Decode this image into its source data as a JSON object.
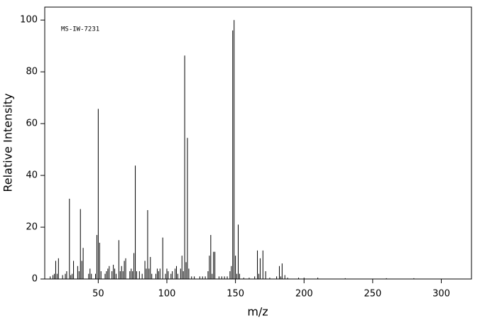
{
  "chart_data": {
    "type": "stem",
    "annotation": "MS-IW-7231",
    "x_label": "m/z",
    "y_label": "Relative Intensity",
    "color": "#000000",
    "xlim": [
      11,
      322
    ],
    "ylim": [
      0,
      105
    ],
    "xticks": [
      50,
      100,
      150,
      200,
      250,
      300
    ],
    "yticks": [
      0,
      20,
      40,
      60,
      80,
      100
    ],
    "x": [
      15,
      17,
      18,
      19,
      20,
      21,
      24,
      26,
      27,
      29,
      30,
      31,
      32,
      35,
      36,
      37,
      38,
      39,
      43,
      44,
      45,
      48,
      49,
      50,
      51,
      52,
      55,
      56,
      57,
      58,
      60,
      61,
      62,
      63,
      65,
      66,
      67,
      68,
      69,
      70,
      73,
      74,
      75,
      76,
      77,
      78,
      80,
      82,
      84,
      85,
      86,
      87,
      88,
      89,
      92,
      93,
      94,
      95,
      97,
      99,
      100,
      101,
      103,
      104,
      106,
      107,
      108,
      110,
      111,
      112,
      113,
      114,
      115,
      116,
      118,
      120,
      124,
      126,
      128,
      130,
      131,
      132,
      133,
      134,
      135,
      138,
      140,
      142,
      144,
      146,
      147,
      148,
      149,
      150,
      151,
      152,
      153,
      156,
      160,
      164,
      166,
      167,
      168,
      170,
      172,
      175,
      180,
      182,
      183,
      184,
      186,
      188,
      196,
      200,
      210,
      230,
      260,
      280
    ],
    "values": [
      1,
      1.5,
      2,
      7,
      2,
      8,
      1.5,
      2,
      3,
      31,
      1.5,
      2,
      7,
      5,
      3,
      27,
      7,
      12,
      2,
      4,
      2,
      2,
      17,
      65.7,
      14,
      3,
      2,
      3,
      4,
      5,
      3,
      5.5,
      4,
      2,
      15,
      3,
      5,
      3,
      7,
      8,
      3,
      4,
      3,
      10,
      43.8,
      3,
      3,
      2,
      7,
      4,
      26.6,
      4,
      8.5,
      2,
      2,
      4,
      3,
      4,
      16,
      2,
      4,
      3,
      2,
      3,
      4,
      5,
      2,
      4,
      9,
      3,
      86.3,
      6.5,
      54.5,
      4,
      1,
      1,
      1,
      1,
      1,
      3,
      9,
      17,
      2,
      10.5,
      10.5,
      1,
      1,
      1,
      1,
      3,
      5,
      96,
      100,
      9,
      2,
      21,
      2,
      0.5,
      0.5,
      1,
      11,
      2,
      8,
      11,
      3,
      0.5,
      1,
      5,
      1,
      6,
      1.5,
      0.5,
      0.5,
      0.5,
      0.5,
      0.3,
      0.3,
      0.3
    ]
  }
}
